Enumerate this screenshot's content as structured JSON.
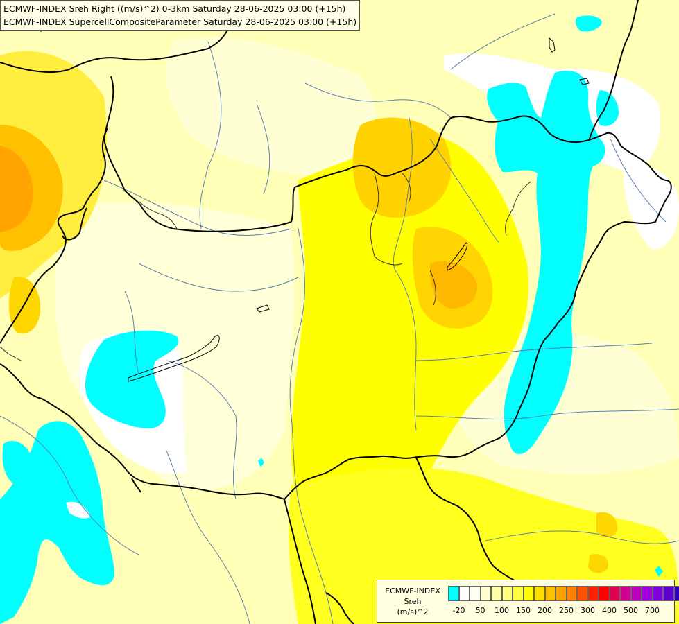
{
  "header": {
    "line1": "ECMWF-INDEX Sreh Right ((m/s)^2) 0-3km Saturday 28-06-2025 03:00 (+15h)",
    "line2": "ECMWF-INDEX SupercellCompositeParameter Saturday 28-06-2025 03:00 (+15h)"
  },
  "legend": {
    "line1": "ECMWF-INDEX",
    "line2": "Sreh",
    "line3": "(m/s)^2",
    "colors": [
      "#00ffff",
      "#ffffff",
      "#fffff0",
      "#ffffd0",
      "#ffffa8",
      "#ffff80",
      "#ffff40",
      "#ffff00",
      "#ffdd00",
      "#ffc000",
      "#ffa000",
      "#ff8000",
      "#ff5000",
      "#ff2000",
      "#ff0000",
      "#e00050",
      "#d00090",
      "#c000c0",
      "#a000e0",
      "#8000e0",
      "#6000d0",
      "#3000c0",
      "#000080"
    ],
    "ticks": [
      "-20",
      "50",
      "100",
      "150",
      "200",
      "250",
      "300",
      "400",
      "500",
      "700"
    ]
  },
  "palette": {
    "land_base": "#ffffc0",
    "cyan": "#00ffff",
    "white": "#ffffff",
    "yellow": "#ffff00",
    "orange_light": "#ffd700",
    "orange": "#ffb400",
    "border": "#000000",
    "river": "#5a7fb0"
  }
}
